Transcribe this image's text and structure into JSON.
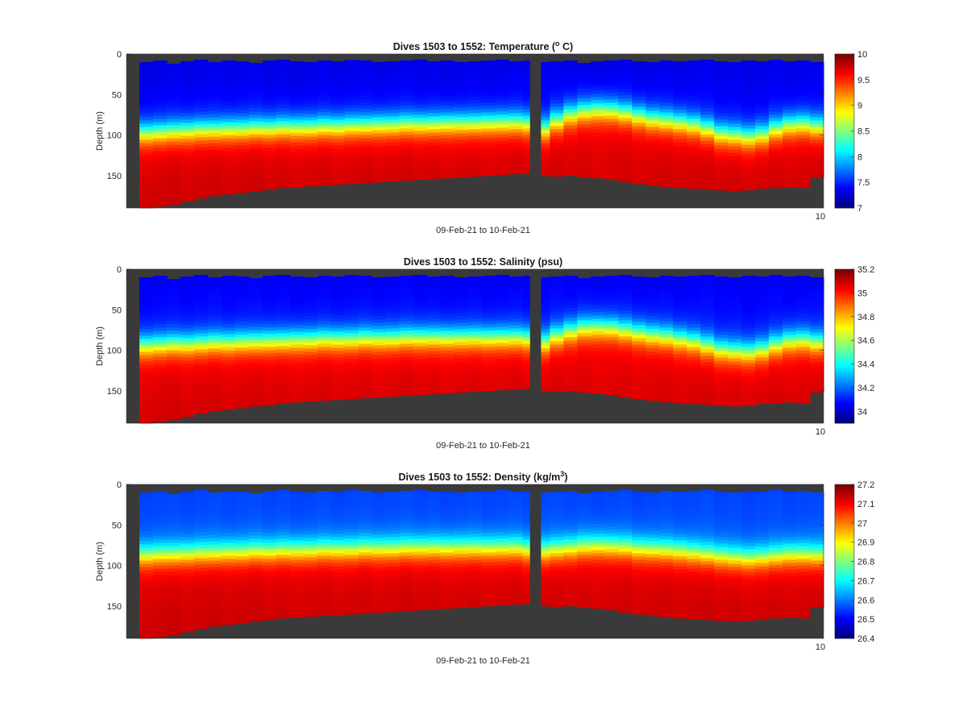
{
  "colors": {
    "background": "#ffffff",
    "seafloor": "#3a3a3a",
    "colormap": "jet"
  },
  "chart_data": [
    {
      "type": "heatmap",
      "title_main": "Dives 1503 to 1552: Temperature (",
      "title_sup": "o",
      "title_tail": " C)",
      "xlabel": "09-Feb-21 to 10-Feb-21",
      "ylabel": "Depth (m)",
      "xtick_label": "10",
      "yticks": [
        "0",
        "50",
        "100",
        "150"
      ],
      "ylim": [
        0,
        190
      ],
      "clim": [
        7,
        10
      ],
      "cbar_ticks": [
        "7",
        "7.5",
        "8",
        "8.5",
        "9",
        "9.5",
        "10"
      ],
      "profiles": 50,
      "thermocline_depth_m": [
        95,
        94,
        93,
        92,
        91,
        91,
        90,
        90,
        89,
        89,
        88,
        88,
        88,
        87,
        87,
        86,
        86,
        85,
        85,
        84,
        84,
        84,
        83,
        83,
        83,
        82,
        82,
        82,
        83,
        90,
        80,
        72,
        68,
        66,
        67,
        70,
        74,
        78,
        80,
        82,
        85,
        90,
        96,
        98,
        100,
        97,
        90,
        85,
        84,
        87
      ],
      "surface_value": 7.3,
      "deep_value": 9.6
    },
    {
      "type": "heatmap",
      "title_main": "Dives 1503 to 1552: Salinity (psu)",
      "title_sup": "",
      "title_tail": "",
      "xlabel": "09-Feb-21 to 10-Feb-21",
      "ylabel": "Depth (m)",
      "xtick_label": "10",
      "yticks": [
        "0",
        "50",
        "100",
        "150"
      ],
      "ylim": [
        0,
        190
      ],
      "clim": [
        33.9,
        35.2
      ],
      "cbar_ticks": [
        "34",
        "34.2",
        "34.4",
        "34.6",
        "34.8",
        "35",
        "35.2"
      ],
      "profiles": 50,
      "thermocline_depth_m": [
        92,
        91,
        90,
        90,
        89,
        88,
        88,
        87,
        87,
        86,
        86,
        85,
        85,
        84,
        84,
        84,
        83,
        83,
        83,
        82,
        82,
        82,
        82,
        82,
        82,
        82,
        82,
        82,
        83,
        88,
        80,
        74,
        70,
        69,
        70,
        73,
        76,
        79,
        81,
        84,
        87,
        92,
        97,
        99,
        100,
        97,
        91,
        86,
        85,
        88
      ],
      "surface_value": 34.05,
      "deep_value": 35.02
    },
    {
      "type": "heatmap",
      "title_main": "Dives 1503 to 1552: Density (kg/m",
      "title_sup": "3",
      "title_tail": ")",
      "xlabel": "09-Feb-21 to 10-Feb-21",
      "ylabel": "Depth (m)",
      "xtick_label": "10",
      "yticks": [
        "0",
        "50",
        "100",
        "150"
      ],
      "ylim": [
        0,
        190
      ],
      "clim": [
        26.4,
        27.2
      ],
      "cbar_ticks": [
        "26.4",
        "26.5",
        "26.6",
        "26.7",
        "26.8",
        "26.9",
        "27",
        "27.1",
        "27.2"
      ],
      "profiles": 50,
      "thermocline_depth_m": [
        85,
        84,
        84,
        83,
        82,
        82,
        81,
        81,
        80,
        80,
        79,
        79,
        79,
        78,
        78,
        78,
        77,
        77,
        77,
        76,
        76,
        76,
        76,
        76,
        76,
        76,
        76,
        76,
        78,
        80,
        78,
        76,
        74,
        73,
        74,
        75,
        77,
        78,
        79,
        80,
        82,
        84,
        86,
        88,
        89,
        88,
        86,
        84,
        84,
        85
      ],
      "surface_value": 26.55,
      "deep_value": 27.1
    }
  ],
  "seafloor_depth_m": [
    190,
    188,
    186,
    182,
    178,
    175,
    173,
    171,
    169,
    167,
    165,
    164,
    163,
    162,
    161,
    160,
    159,
    158,
    157,
    156,
    155,
    154,
    153,
    152,
    151,
    150,
    149,
    148,
    147,
    150,
    151,
    150,
    152,
    153,
    155,
    158,
    160,
    162,
    164,
    165,
    166,
    167,
    168,
    169,
    168,
    166,
    165,
    164,
    165,
    152
  ],
  "surface_gap_m": [
    10,
    8,
    12,
    9,
    7,
    10,
    8,
    9,
    11,
    8,
    7,
    9,
    10,
    8,
    9,
    7,
    8,
    10,
    9,
    8,
    7,
    9,
    8,
    10,
    9,
    8,
    7,
    9,
    8,
    10,
    9,
    8,
    11,
    9,
    8,
    7,
    9,
    10,
    8,
    9,
    8,
    7,
    9,
    10,
    8,
    9,
    7,
    9,
    8,
    10
  ]
}
